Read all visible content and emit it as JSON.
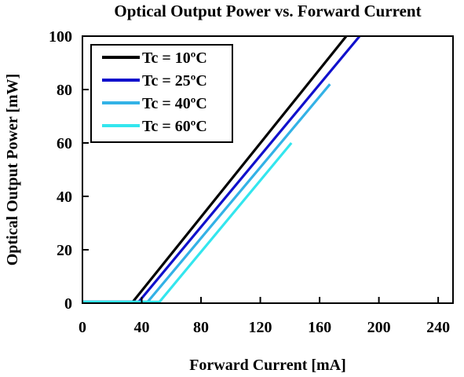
{
  "chart_data": {
    "type": "line",
    "title": "Optical Output Power vs. Forward Current",
    "xlabel": "Forward Current [mA]",
    "ylabel": "Optical Output Power [mW]",
    "xlim": [
      0,
      250
    ],
    "ylim": [
      0,
      100
    ],
    "x_ticks": [
      0,
      40,
      80,
      120,
      160,
      200,
      240
    ],
    "x_tick_labels": [
      "0",
      "40",
      "80",
      "120",
      "160",
      "200",
      "240"
    ],
    "y_ticks": [
      0,
      20,
      40,
      60,
      80,
      100
    ],
    "y_tick_labels": [
      "0",
      "20",
      "40",
      "60",
      "80",
      "100"
    ],
    "grid": false,
    "legend_position": "top-left",
    "series": [
      {
        "name": "Tc = 10ºC",
        "color": "#000000",
        "points": [
          [
            0,
            0.5
          ],
          [
            34,
            0.5
          ],
          [
            178,
            100
          ]
        ]
      },
      {
        "name": "Tc = 25ºC",
        "color": "#1010cc",
        "points": [
          [
            0,
            0.5
          ],
          [
            38,
            0.5
          ],
          [
            187,
            100
          ]
        ]
      },
      {
        "name": "Tc = 40ºC",
        "color": "#33b2e6",
        "points": [
          [
            0,
            0.5
          ],
          [
            44,
            0.5
          ],
          [
            167,
            82
          ]
        ]
      },
      {
        "name": "Tc = 60ºC",
        "color": "#33e6ee",
        "points": [
          [
            0,
            0.5
          ],
          [
            52,
            0.5
          ],
          [
            141,
            60
          ]
        ]
      }
    ]
  }
}
